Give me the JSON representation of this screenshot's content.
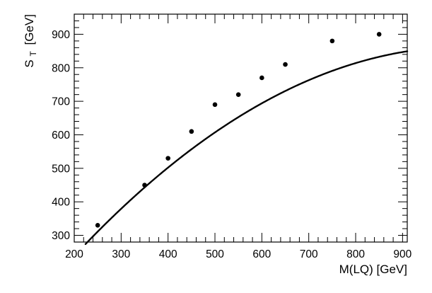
{
  "chart_data": {
    "type": "scatter",
    "xlabel": "M(LQ) [GeV]",
    "ylabel_main": "S",
    "ylabel_sub": "T",
    "ylabel_unit": "[GeV]",
    "xlim": [
      200,
      910
    ],
    "ylim": [
      280,
      960
    ],
    "grid": false,
    "x_ticks": [
      200,
      300,
      400,
      500,
      600,
      700,
      800,
      900
    ],
    "y_ticks": [
      300,
      400,
      500,
      600,
      700,
      800,
      900
    ],
    "series": [
      {
        "points": [
          {
            "x": 250,
            "y": 330
          },
          {
            "x": 350,
            "y": 450
          },
          {
            "x": 400,
            "y": 530
          },
          {
            "x": 450,
            "y": 610
          },
          {
            "x": 500,
            "y": 690
          },
          {
            "x": 550,
            "y": 720
          },
          {
            "x": 600,
            "y": 770
          },
          {
            "x": 650,
            "y": 810
          },
          {
            "x": 750,
            "y": 880
          },
          {
            "x": 850,
            "y": 900
          }
        ]
      }
    ],
    "fit": {
      "type": "polynomial",
      "coefficients": [
        -97.27,
        1.8582,
        -0.000899
      ],
      "x_range": [
        224,
        910
      ]
    },
    "colors": {
      "line": "#000000",
      "marker": "#000000",
      "background": "#ffffff"
    }
  }
}
